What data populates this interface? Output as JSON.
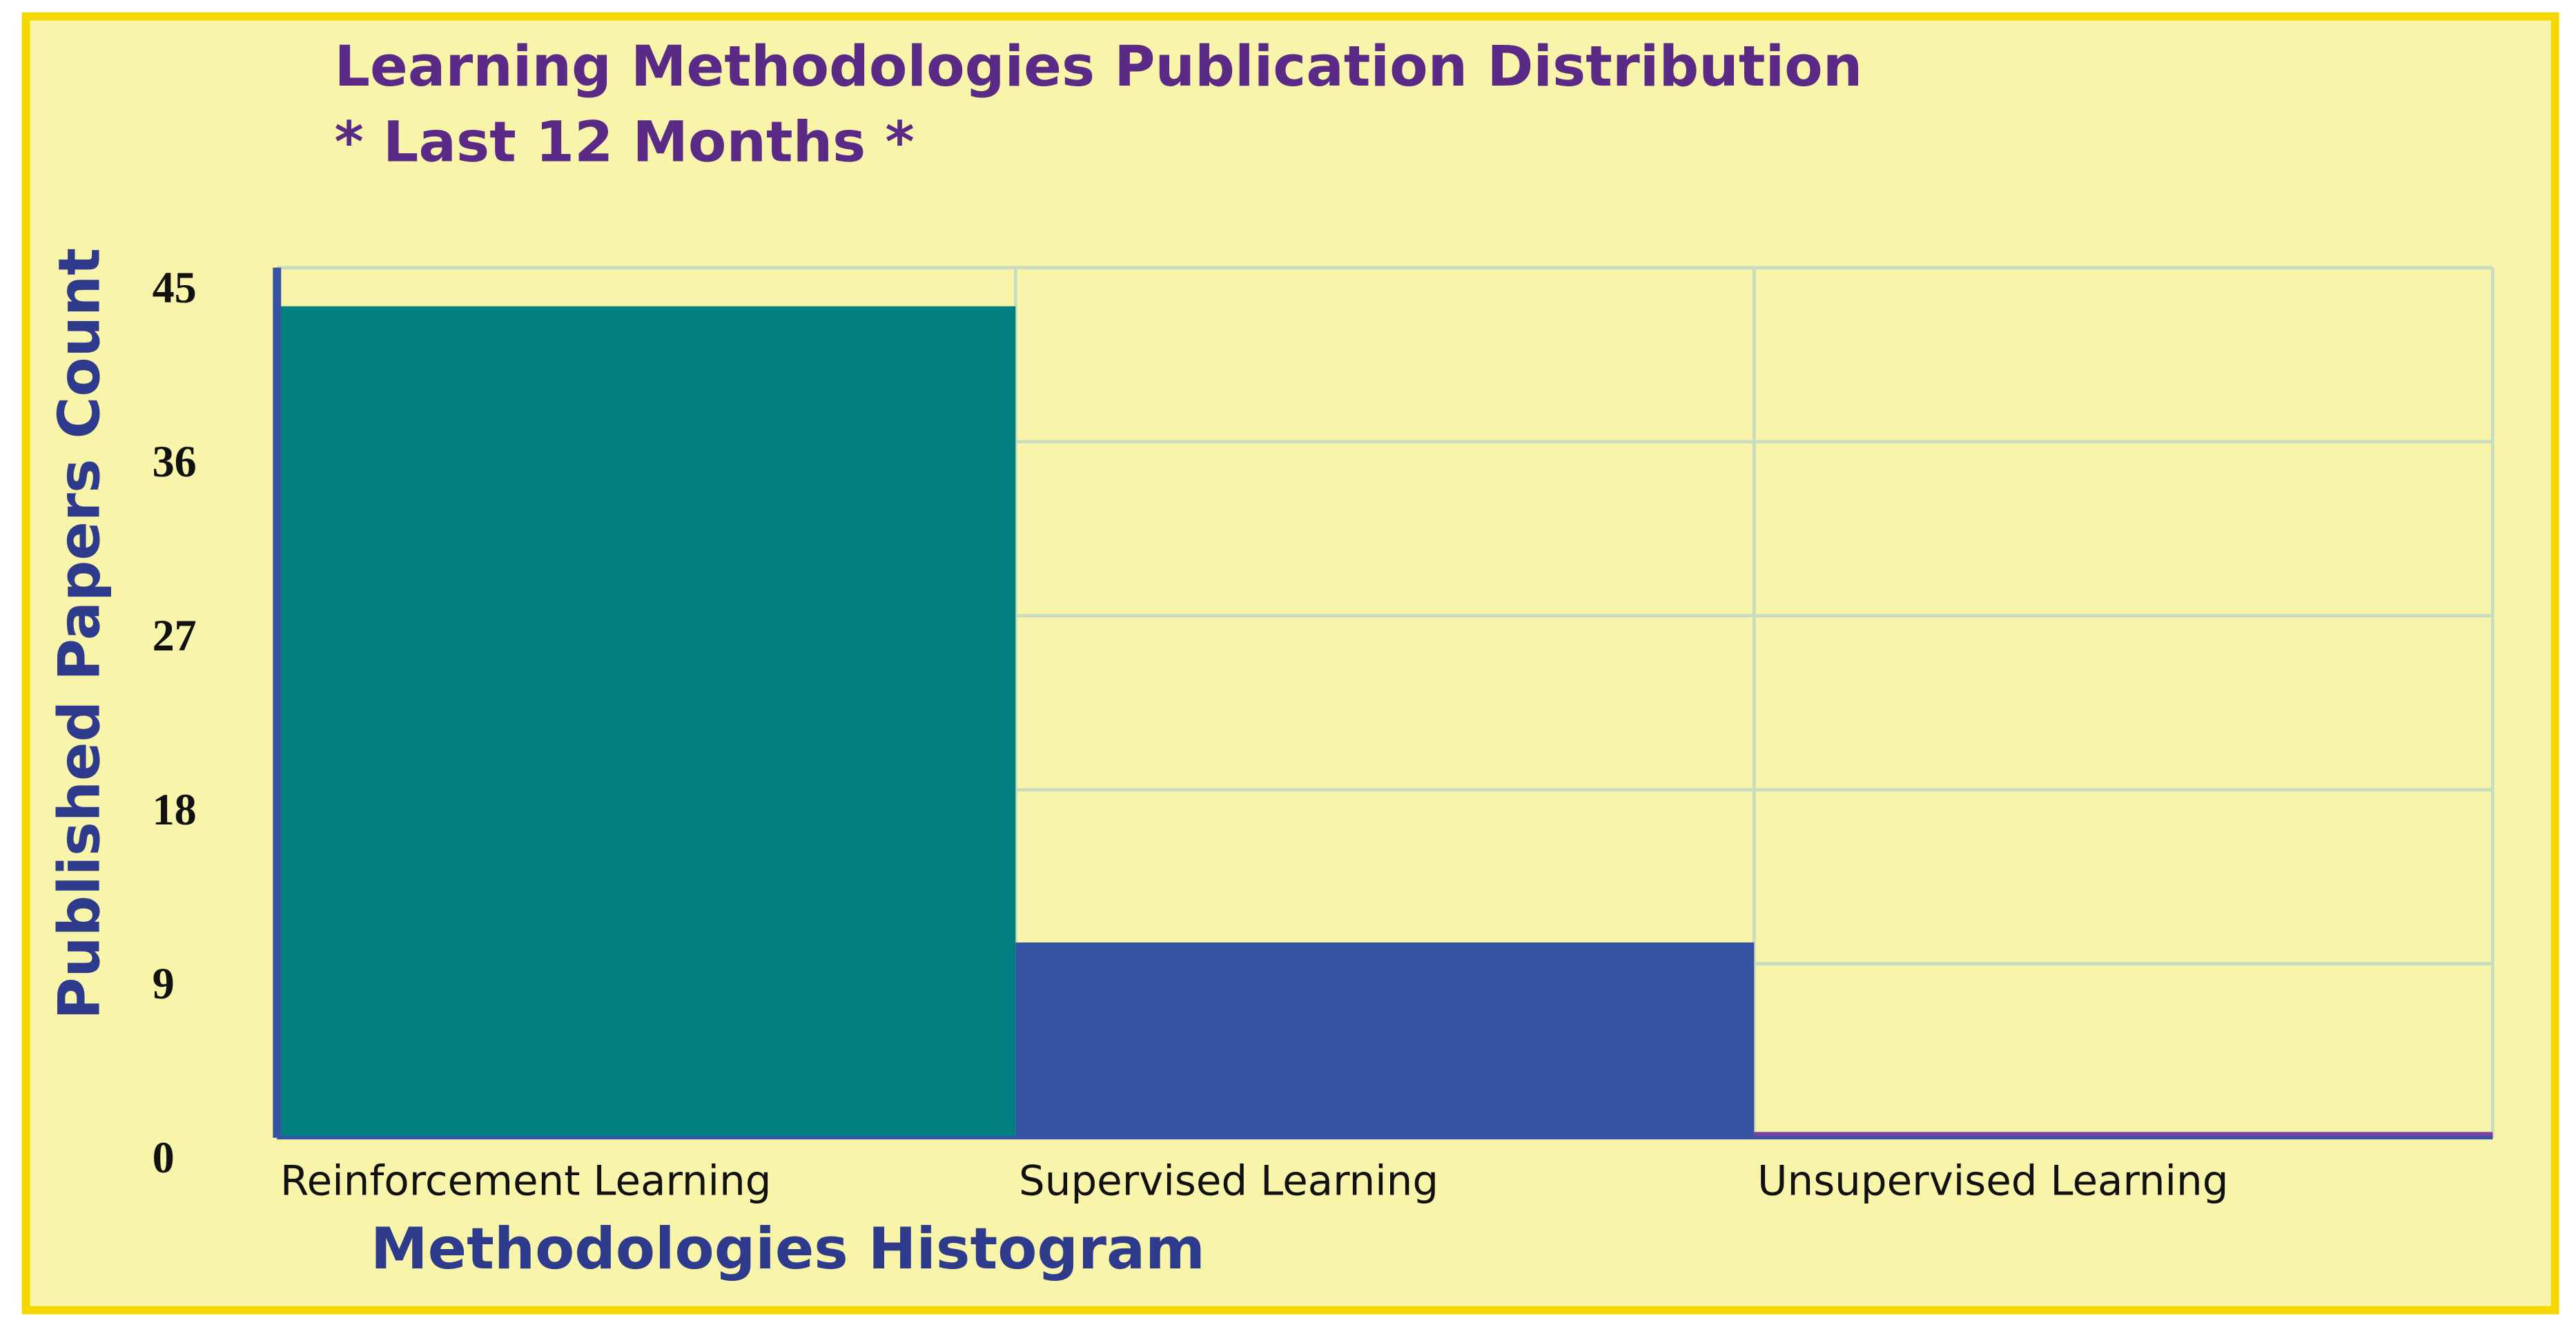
{
  "chart_data": {
    "type": "bar",
    "title": "Learning Methodologies Publication Distribution",
    "subtitle": "*  Last 12 Months  *",
    "x_label": "Methodologies Histogram",
    "y_label": "Published Papers Count",
    "categories": [
      "Reinforcement Learning",
      "Supervised Learning",
      "Unsupervised Learning"
    ],
    "values": [
      43,
      10.1,
      0.3
    ],
    "colors": [
      "#008080",
      "#3653a3",
      "#7a3fa0"
    ],
    "ylim": [
      0,
      45
    ],
    "yticks": [
      0,
      9,
      18,
      27,
      36,
      45
    ],
    "grid": true
  }
}
